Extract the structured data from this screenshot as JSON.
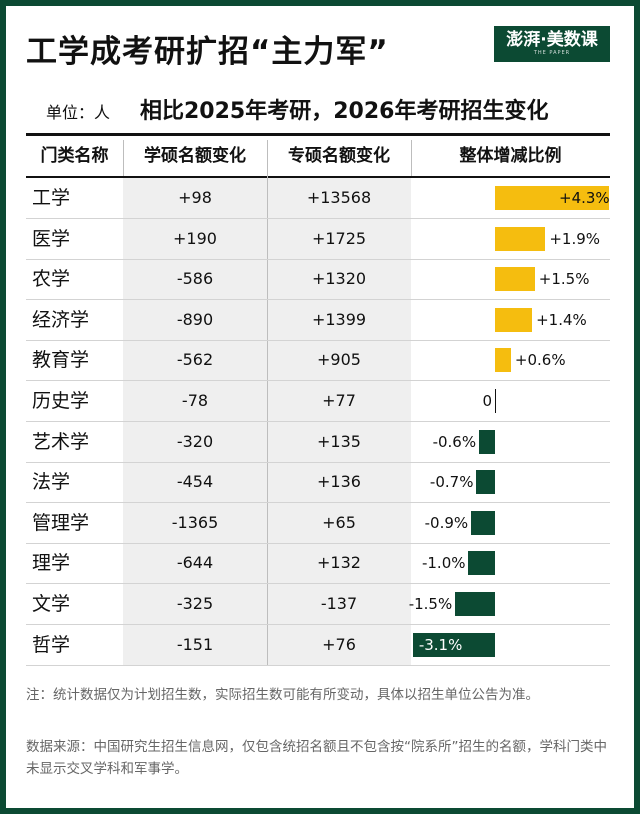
{
  "title": "工学成考研扩招“主力军”",
  "logo": {
    "text": "澎湃·美数课",
    "sub": "THE PAPER"
  },
  "unit": "单位：人",
  "subtitle": "相比2025年考研，2026年考研招生变化",
  "columns": [
    "门类名称",
    "学硕名额变化",
    "专硕名额变化",
    "整体增减比例"
  ],
  "rows": [
    {
      "name": "工学",
      "xueshuo": "+98",
      "zhuanshuo": "+13568",
      "ratio_label": "+4.3%"
    },
    {
      "name": "医学",
      "xueshuo": "+190",
      "zhuanshuo": "+1725",
      "ratio_label": "+1.9%"
    },
    {
      "name": "农学",
      "xueshuo": "-586",
      "zhuanshuo": "+1320",
      "ratio_label": "+1.5%"
    },
    {
      "name": "经济学",
      "xueshuo": "-890",
      "zhuanshuo": "+1399",
      "ratio_label": "+1.4%"
    },
    {
      "name": "教育学",
      "xueshuo": "-562",
      "zhuanshuo": "+905",
      "ratio_label": "+0.6%"
    },
    {
      "name": "历史学",
      "xueshuo": "-78",
      "zhuanshuo": "+77",
      "ratio_label": "0"
    },
    {
      "name": "艺术学",
      "xueshuo": "-320",
      "zhuanshuo": "+135",
      "ratio_label": "-0.6%"
    },
    {
      "name": "法学",
      "xueshuo": "-454",
      "zhuanshuo": "+136",
      "ratio_label": "-0.7%"
    },
    {
      "name": "管理学",
      "xueshuo": "-1365",
      "zhuanshuo": "+65",
      "ratio_label": "-0.9%"
    },
    {
      "name": "理学",
      "xueshuo": "-644",
      "zhuanshuo": "+132",
      "ratio_label": "-1.0%"
    },
    {
      "name": "文学",
      "xueshuo": "-325",
      "zhuanshuo": "-137",
      "ratio_label": "-1.5%"
    },
    {
      "name": "哲学",
      "xueshuo": "-151",
      "zhuanshuo": "+76",
      "ratio_label": "-3.1%"
    }
  ],
  "notes": {
    "note": "注：统计数据仅为计划招生数，实际招生数可能有所变动，具体以招生单位公告为准。",
    "source": "数据来源：中国研究生招生信息网，仅包含统招名额且不包含按“院系所”招生的名额，学科门类中未显示交叉学科和军事学。"
  },
  "colors": {
    "positive": "#f5bd0f",
    "negative": "#0c4a33",
    "frame": "#0c4a33"
  },
  "chart_data": {
    "type": "bar",
    "orientation": "horizontal",
    "title": "相比2025年考研，2026年考研招生变化",
    "categories": [
      "工学",
      "医学",
      "农学",
      "经济学",
      "教育学",
      "历史学",
      "艺术学",
      "法学",
      "管理学",
      "理学",
      "文学",
      "哲学"
    ],
    "series": [
      {
        "name": "整体增减比例",
        "values": [
          4.3,
          1.9,
          1.5,
          1.4,
          0.6,
          0,
          -0.6,
          -0.7,
          -0.9,
          -1.0,
          -1.5,
          -3.1
        ]
      }
    ],
    "unit": "%",
    "xlim": [
      -3.1,
      4.3
    ],
    "grid": false,
    "legend": "none"
  }
}
